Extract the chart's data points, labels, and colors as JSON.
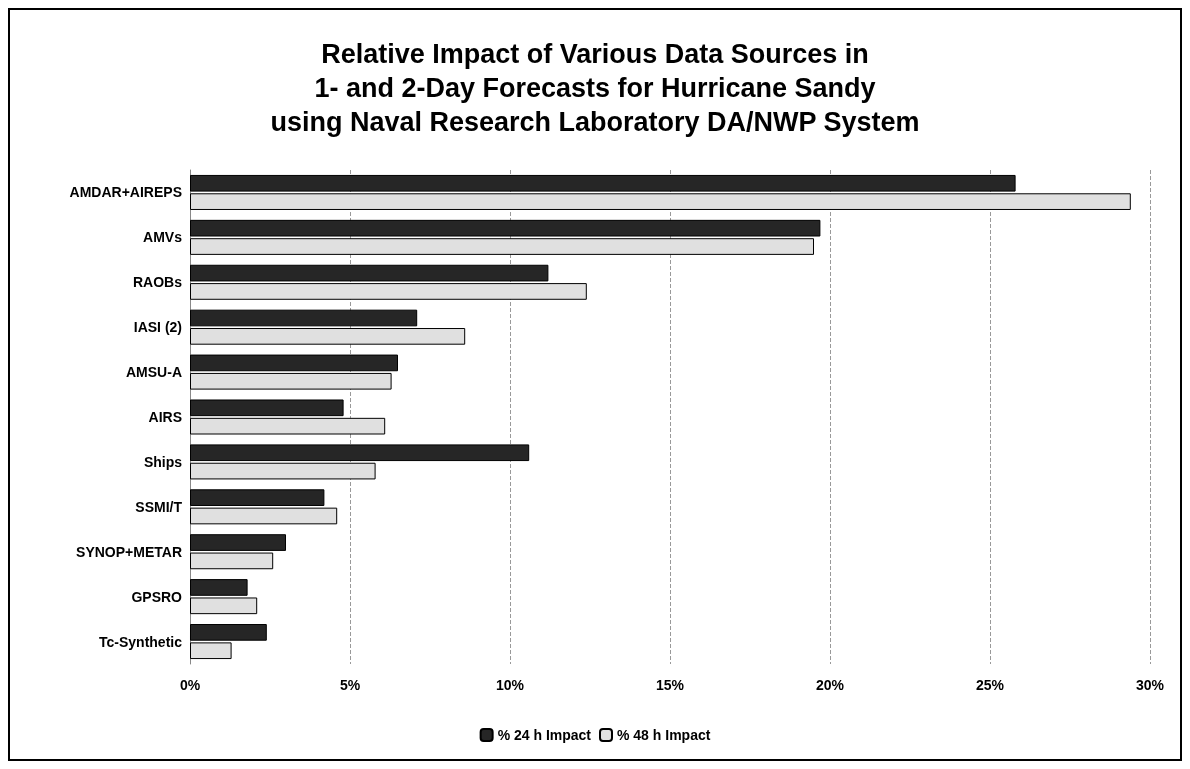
{
  "chart_data": {
    "type": "bar",
    "orientation": "horizontal",
    "title": "Relative Impact of Various Data Sources in\n1- and 2-Day Forecasts for Hurricane Sandy\nusing Naval Research Laboratory DA/NWP System",
    "categories": [
      "AMDAR+AIREPS",
      "AMVs",
      "RAOBs",
      "IASI (2)",
      "AMSU-A",
      "AIRS",
      "Ships",
      "SSMI/T",
      "SYNOP+METAR",
      "GPSRO",
      "Tc-Synthetic"
    ],
    "series": [
      {
        "name": "% 24 h Impact",
        "color": "#262626",
        "values": [
          25.8,
          19.7,
          11.2,
          7.1,
          6.5,
          4.8,
          10.6,
          4.2,
          3.0,
          1.8,
          2.4
        ]
      },
      {
        "name": "% 48 h Impact",
        "color": "#e0e0e0",
        "values": [
          29.4,
          19.5,
          12.4,
          8.6,
          6.3,
          6.1,
          5.8,
          4.6,
          2.6,
          2.1,
          1.3
        ]
      }
    ],
    "xlim": [
      0,
      30
    ],
    "xticks": [
      {
        "value": 0,
        "label": "0%"
      },
      {
        "value": 5,
        "label": "5%"
      },
      {
        "value": 10,
        "label": "10%"
      },
      {
        "value": 15,
        "label": "15%"
      },
      {
        "value": 20,
        "label": "20%"
      },
      {
        "value": 25,
        "label": "25%"
      },
      {
        "value": 30,
        "label": "30%"
      }
    ],
    "grid": "x",
    "legend": "bottom"
  }
}
